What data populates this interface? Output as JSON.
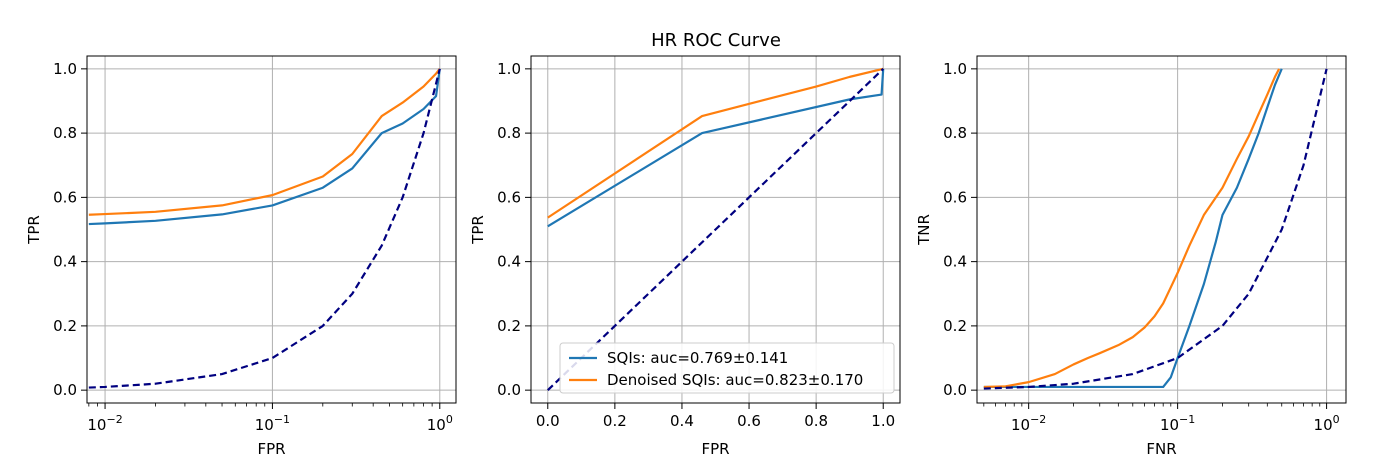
{
  "figure": {
    "title": "HR ROC Curve"
  },
  "colors": {
    "sqi": "#1f77b4",
    "denoised": "#ff7f0e",
    "chance": "#000080",
    "grid": "#b0b0b0"
  },
  "legend": {
    "placement": "lower-right",
    "entries": [
      {
        "series": "sqi",
        "label": "SQIs: auc=0.769±0.141"
      },
      {
        "series": "denoised",
        "label": "Denoised SQIs: auc=0.823±0.170"
      }
    ]
  },
  "chart_data": [
    {
      "type": "line",
      "title": "",
      "xlabel": "FPR",
      "ylabel": "TPR",
      "xscale": "log",
      "xlim": [
        0.0078,
        1.25
      ],
      "ylim": [
        -0.04,
        1.04
      ],
      "xticks": [
        0.01,
        0.1,
        1
      ],
      "xtick_labels": [
        {
          "base": "10",
          "exp": "−2"
        },
        {
          "base": "10",
          "exp": "−1"
        },
        {
          "base": "10",
          "exp": "0"
        }
      ],
      "yticks": [
        0.0,
        0.2,
        0.4,
        0.6,
        0.8,
        1.0
      ],
      "ytick_labels": [
        "0.0",
        "0.2",
        "0.4",
        "0.6",
        "0.8",
        "1.0"
      ],
      "grid": true,
      "legend": false,
      "series": [
        {
          "key": "sqi",
          "style": "solid",
          "x": [
            0.008,
            0.01,
            0.02,
            0.05,
            0.1,
            0.2,
            0.3,
            0.45,
            0.6,
            0.8,
            0.95,
            1.0
          ],
          "y": [
            0.517,
            0.519,
            0.527,
            0.547,
            0.575,
            0.63,
            0.69,
            0.8,
            0.83,
            0.875,
            0.915,
            1.0
          ]
        },
        {
          "key": "denoised",
          "style": "solid",
          "x": [
            0.008,
            0.01,
            0.02,
            0.05,
            0.1,
            0.2,
            0.3,
            0.45,
            0.6,
            0.8,
            0.95,
            1.0
          ],
          "y": [
            0.546,
            0.548,
            0.555,
            0.575,
            0.607,
            0.665,
            0.735,
            0.853,
            0.895,
            0.945,
            0.985,
            1.0
          ]
        },
        {
          "key": "chance",
          "style": "dashed",
          "x": [
            0.008,
            0.01,
            0.02,
            0.05,
            0.1,
            0.2,
            0.3,
            0.45,
            0.6,
            0.8,
            1.0
          ],
          "y": [
            0.008,
            0.01,
            0.02,
            0.05,
            0.1,
            0.2,
            0.3,
            0.45,
            0.6,
            0.8,
            1.0
          ]
        }
      ]
    },
    {
      "type": "line",
      "title": "HR ROC Curve",
      "xlabel": "FPR",
      "ylabel": "TPR",
      "xscale": "linear",
      "xlim": [
        -0.05,
        1.05
      ],
      "ylim": [
        -0.04,
        1.04
      ],
      "xticks": [
        0.0,
        0.2,
        0.4,
        0.6,
        0.8,
        1.0
      ],
      "xtick_labels": [
        "0.0",
        "0.2",
        "0.4",
        "0.6",
        "0.8",
        "1.0"
      ],
      "yticks": [
        0.0,
        0.2,
        0.4,
        0.6,
        0.8,
        1.0
      ],
      "ytick_labels": [
        "0.0",
        "0.2",
        "0.4",
        "0.6",
        "0.8",
        "1.0"
      ],
      "grid": true,
      "legend": true,
      "series": [
        {
          "key": "sqi",
          "style": "solid",
          "x": [
            0.0,
            0.46,
            0.9,
            0.995,
            1.0
          ],
          "y": [
            0.51,
            0.8,
            0.905,
            0.92,
            1.0
          ]
        },
        {
          "key": "denoised",
          "style": "solid",
          "x": [
            0.0,
            0.46,
            0.8,
            0.9,
            1.0
          ],
          "y": [
            0.537,
            0.853,
            0.945,
            0.975,
            1.0
          ]
        },
        {
          "key": "chance",
          "style": "dashed",
          "x": [
            0.0,
            1.0
          ],
          "y": [
            0.0,
            1.0
          ]
        }
      ]
    },
    {
      "type": "line",
      "title": "",
      "xlabel": "FNR",
      "ylabel": "TNR",
      "xscale": "log",
      "xlim": [
        0.0045,
        1.35
      ],
      "ylim": [
        -0.04,
        1.04
      ],
      "xticks": [
        0.01,
        0.1,
        1
      ],
      "xtick_labels": [
        {
          "base": "10",
          "exp": "−2"
        },
        {
          "base": "10",
          "exp": "−1"
        },
        {
          "base": "10",
          "exp": "0"
        }
      ],
      "yticks": [
        0.0,
        0.2,
        0.4,
        0.6,
        0.8,
        1.0
      ],
      "ytick_labels": [
        "0.0",
        "0.2",
        "0.4",
        "0.6",
        "0.8",
        "1.0"
      ],
      "grid": true,
      "legend": false,
      "series": [
        {
          "key": "sqi",
          "style": "solid",
          "x": [
            0.005,
            0.01,
            0.05,
            0.08,
            0.09,
            0.1,
            0.12,
            0.15,
            0.18,
            0.2,
            0.25,
            0.3,
            0.35,
            0.4,
            0.45,
            0.5
          ],
          "y": [
            0.01,
            0.01,
            0.01,
            0.01,
            0.04,
            0.1,
            0.2,
            0.33,
            0.46,
            0.545,
            0.63,
            0.72,
            0.8,
            0.88,
            0.95,
            1.0
          ]
        },
        {
          "key": "denoised",
          "style": "solid",
          "x": [
            0.005,
            0.007,
            0.01,
            0.015,
            0.02,
            0.025,
            0.03,
            0.04,
            0.05,
            0.06,
            0.07,
            0.08,
            0.09,
            0.1,
            0.12,
            0.15,
            0.2,
            0.25,
            0.3,
            0.35,
            0.4,
            0.45,
            0.48
          ],
          "y": [
            0.01,
            0.012,
            0.025,
            0.05,
            0.08,
            0.1,
            0.115,
            0.14,
            0.165,
            0.195,
            0.23,
            0.27,
            0.32,
            0.365,
            0.45,
            0.545,
            0.63,
            0.72,
            0.79,
            0.86,
            0.92,
            0.975,
            1.0
          ]
        },
        {
          "key": "chance",
          "style": "dashed",
          "x": [
            0.005,
            0.01,
            0.02,
            0.05,
            0.1,
            0.2,
            0.3,
            0.5,
            0.7,
            1.0
          ],
          "y": [
            0.005,
            0.01,
            0.02,
            0.05,
            0.1,
            0.2,
            0.3,
            0.5,
            0.7,
            1.0
          ]
        }
      ]
    }
  ]
}
